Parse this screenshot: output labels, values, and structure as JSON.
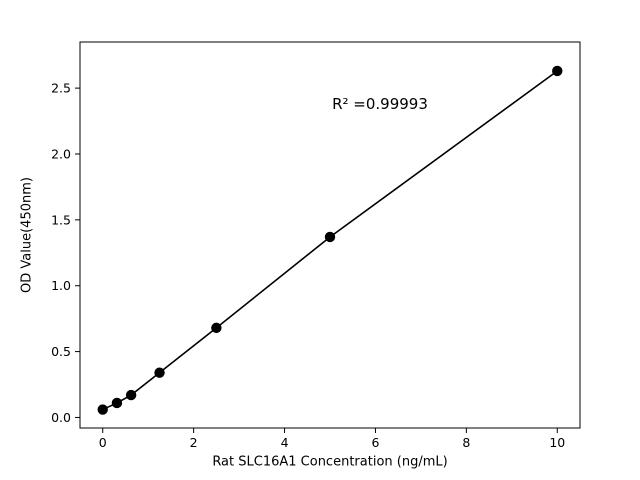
{
  "chart_data": {
    "type": "scatter",
    "title": "",
    "xlabel": "Rat SLC16A1 Concentration (ng/mL)",
    "ylabel": "OD Value(450nm)",
    "annotation": "R² =0.99993",
    "annotation_xy": [
      6.1,
      2.38
    ],
    "x": [
      0,
      0.3125,
      0.625,
      1.25,
      2.5,
      5,
      10
    ],
    "y": [
      0.06,
      0.11,
      0.17,
      0.34,
      0.68,
      1.37,
      2.63
    ],
    "line_through_points": true,
    "xlim": [
      -0.5,
      10.5
    ],
    "ylim": [
      -0.08,
      2.85
    ],
    "xticks": [
      0,
      2,
      4,
      6,
      8,
      10
    ],
    "xtick_labels": [
      "0",
      "2",
      "4",
      "6",
      "8",
      "10"
    ],
    "yticks": [
      0.0,
      0.5,
      1.0,
      1.5,
      2.0,
      2.5
    ],
    "ytick_labels": [
      "0.0",
      "0.5",
      "1.0",
      "1.5",
      "2.0",
      "2.5"
    ],
    "grid": false,
    "legend": null,
    "marker_color": "#000000",
    "line_color": "#000000",
    "background_color": "#ffffff"
  }
}
